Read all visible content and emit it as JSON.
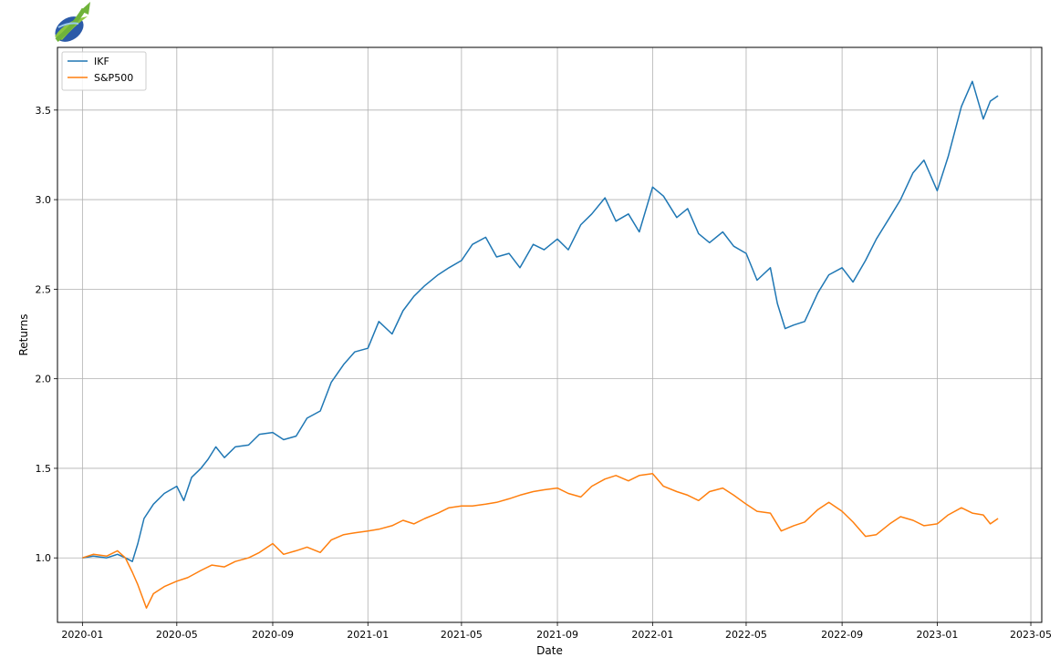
{
  "logo": {
    "name": "logo-swoosh"
  },
  "chart_data": {
    "type": "line",
    "xlabel": "Date",
    "ylabel": "Returns",
    "xlim": [
      "2019-11-30",
      "2023-05-15"
    ],
    "ylim": [
      0.64,
      3.85
    ],
    "grid": true,
    "legend_placement": "top-left",
    "x_ticks": [
      "2020-01",
      "2020-05",
      "2020-09",
      "2021-01",
      "2021-05",
      "2021-09",
      "2022-01",
      "2022-05",
      "2022-09",
      "2023-01",
      "2023-05"
    ],
    "y_ticks": [
      1.0,
      1.5,
      2.0,
      2.5,
      3.0,
      3.5
    ],
    "y_tick_labels": [
      "1.0",
      "1.5",
      "2.0",
      "2.5",
      "3.0",
      "3.5"
    ],
    "series": [
      {
        "name": "IKF",
        "color": "#1f77b4",
        "x": [
          "2020-01-01",
          "2020-01-15",
          "2020-02-01",
          "2020-02-15",
          "2020-02-25",
          "2020-03-05",
          "2020-03-12",
          "2020-03-20",
          "2020-04-01",
          "2020-04-15",
          "2020-05-01",
          "2020-05-10",
          "2020-05-20",
          "2020-06-01",
          "2020-06-10",
          "2020-06-20",
          "2020-07-01",
          "2020-07-15",
          "2020-08-01",
          "2020-08-15",
          "2020-09-01",
          "2020-09-15",
          "2020-10-01",
          "2020-10-15",
          "2020-11-01",
          "2020-11-15",
          "2020-12-01",
          "2020-12-15",
          "2021-01-01",
          "2021-01-15",
          "2021-02-01",
          "2021-02-15",
          "2021-03-01",
          "2021-03-15",
          "2021-04-01",
          "2021-04-15",
          "2021-05-01",
          "2021-05-15",
          "2021-06-01",
          "2021-06-15",
          "2021-07-01",
          "2021-07-15",
          "2021-08-01",
          "2021-08-15",
          "2021-09-01",
          "2021-09-15",
          "2021-10-01",
          "2021-10-15",
          "2021-11-01",
          "2021-11-15",
          "2021-12-01",
          "2021-12-15",
          "2022-01-01",
          "2022-01-15",
          "2022-02-01",
          "2022-02-15",
          "2022-03-01",
          "2022-03-15",
          "2022-04-01",
          "2022-04-15",
          "2022-05-01",
          "2022-05-15",
          "2022-06-01",
          "2022-06-10",
          "2022-06-20",
          "2022-07-01",
          "2022-07-15",
          "2022-08-01",
          "2022-08-15",
          "2022-09-01",
          "2022-09-15",
          "2022-10-01",
          "2022-10-15",
          "2022-11-01",
          "2022-11-15",
          "2022-12-01",
          "2022-12-15",
          "2023-01-01",
          "2023-01-15",
          "2023-02-01",
          "2023-02-15",
          "2023-03-01",
          "2023-03-10",
          "2023-03-20"
        ],
        "values": [
          1.0,
          1.01,
          1.0,
          1.02,
          1.0,
          0.98,
          1.08,
          1.22,
          1.3,
          1.36,
          1.4,
          1.32,
          1.45,
          1.5,
          1.55,
          1.62,
          1.56,
          1.62,
          1.63,
          1.69,
          1.7,
          1.66,
          1.68,
          1.78,
          1.82,
          1.98,
          2.08,
          2.15,
          2.17,
          2.32,
          2.25,
          2.38,
          2.46,
          2.52,
          2.58,
          2.62,
          2.66,
          2.75,
          2.79,
          2.68,
          2.7,
          2.62,
          2.75,
          2.72,
          2.78,
          2.72,
          2.86,
          2.92,
          3.01,
          2.88,
          2.92,
          2.82,
          3.07,
          3.02,
          2.9,
          2.95,
          2.81,
          2.76,
          2.82,
          2.74,
          2.7,
          2.55,
          2.62,
          2.42,
          2.28,
          2.3,
          2.32,
          2.48,
          2.58,
          2.62,
          2.54,
          2.66,
          2.78,
          2.9,
          3.0,
          3.15,
          3.22,
          3.05,
          3.24,
          3.52,
          3.66,
          3.45,
          3.55,
          3.58
        ]
      },
      {
        "name": "S&P500",
        "color": "#ff7f0e",
        "x": [
          "2020-01-01",
          "2020-01-15",
          "2020-02-01",
          "2020-02-15",
          "2020-02-25",
          "2020-03-05",
          "2020-03-12",
          "2020-03-23",
          "2020-04-01",
          "2020-04-15",
          "2020-05-01",
          "2020-05-15",
          "2020-06-01",
          "2020-06-15",
          "2020-07-01",
          "2020-07-15",
          "2020-08-01",
          "2020-08-15",
          "2020-09-01",
          "2020-09-15",
          "2020-10-01",
          "2020-10-15",
          "2020-11-01",
          "2020-11-15",
          "2020-12-01",
          "2020-12-15",
          "2021-01-01",
          "2021-01-15",
          "2021-02-01",
          "2021-02-15",
          "2021-03-01",
          "2021-03-15",
          "2021-04-01",
          "2021-04-15",
          "2021-05-01",
          "2021-05-15",
          "2021-06-01",
          "2021-06-15",
          "2021-07-01",
          "2021-07-15",
          "2021-08-01",
          "2021-08-15",
          "2021-09-01",
          "2021-09-15",
          "2021-10-01",
          "2021-10-15",
          "2021-11-01",
          "2021-11-15",
          "2021-12-01",
          "2021-12-15",
          "2022-01-01",
          "2022-01-15",
          "2022-02-01",
          "2022-02-15",
          "2022-03-01",
          "2022-03-15",
          "2022-04-01",
          "2022-04-15",
          "2022-05-01",
          "2022-05-15",
          "2022-06-01",
          "2022-06-15",
          "2022-07-01",
          "2022-07-15",
          "2022-08-01",
          "2022-08-15",
          "2022-09-01",
          "2022-09-15",
          "2022-10-01",
          "2022-10-15",
          "2022-11-01",
          "2022-11-15",
          "2022-12-01",
          "2022-12-15",
          "2023-01-01",
          "2023-01-15",
          "2023-02-01",
          "2023-02-15",
          "2023-03-01",
          "2023-03-10",
          "2023-03-20"
        ],
        "values": [
          1.0,
          1.02,
          1.01,
          1.04,
          1.0,
          0.92,
          0.85,
          0.72,
          0.8,
          0.84,
          0.87,
          0.89,
          0.93,
          0.96,
          0.95,
          0.98,
          1.0,
          1.03,
          1.08,
          1.02,
          1.04,
          1.06,
          1.03,
          1.1,
          1.13,
          1.14,
          1.15,
          1.16,
          1.18,
          1.21,
          1.19,
          1.22,
          1.25,
          1.28,
          1.29,
          1.29,
          1.3,
          1.31,
          1.33,
          1.35,
          1.37,
          1.38,
          1.39,
          1.36,
          1.34,
          1.4,
          1.44,
          1.46,
          1.43,
          1.46,
          1.47,
          1.4,
          1.37,
          1.35,
          1.32,
          1.37,
          1.39,
          1.35,
          1.3,
          1.26,
          1.25,
          1.15,
          1.18,
          1.2,
          1.27,
          1.31,
          1.26,
          1.2,
          1.12,
          1.13,
          1.19,
          1.23,
          1.21,
          1.18,
          1.19,
          1.24,
          1.28,
          1.25,
          1.24,
          1.19,
          1.22
        ]
      }
    ]
  }
}
